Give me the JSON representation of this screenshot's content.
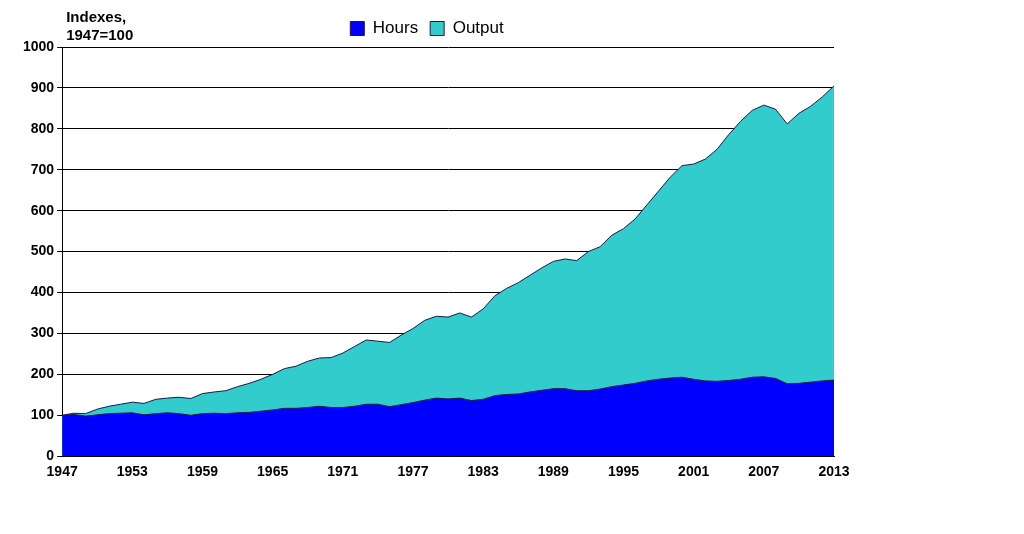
{
  "chart_data": {
    "type": "area",
    "y_label": [
      "Indexes,",
      "1947=100"
    ],
    "x": [
      1947,
      1948,
      1949,
      1950,
      1951,
      1952,
      1953,
      1954,
      1955,
      1956,
      1957,
      1958,
      1959,
      1960,
      1961,
      1962,
      1963,
      1964,
      1965,
      1966,
      1967,
      1968,
      1969,
      1970,
      1971,
      1972,
      1973,
      1974,
      1975,
      1976,
      1977,
      1978,
      1979,
      1980,
      1981,
      1982,
      1983,
      1984,
      1985,
      1986,
      1987,
      1988,
      1989,
      1990,
      1991,
      1992,
      1993,
      1994,
      1995,
      1996,
      1997,
      1998,
      1999,
      2000,
      2001,
      2002,
      2003,
      2004,
      2005,
      2006,
      2007,
      2008,
      2009,
      2010,
      2011,
      2012,
      2013
    ],
    "series": [
      {
        "name": "Output",
        "color": "#33cccc",
        "values": [
          100,
          105,
          104,
          115,
          122,
          127,
          132,
          129,
          139,
          142,
          144,
          141,
          153,
          157,
          160,
          170,
          178,
          188,
          200,
          214,
          220,
          232,
          240,
          241,
          252,
          268,
          284,
          281,
          278,
          296,
          312,
          332,
          342,
          340,
          350,
          340,
          360,
          392,
          410,
          424,
          442,
          460,
          476,
          482,
          478,
          500,
          512,
          540,
          556,
          580,
          614,
          648,
          682,
          710,
          714,
          726,
          750,
          786,
          818,
          845,
          858,
          848,
          812,
          838,
          855,
          878,
          905
        ]
      },
      {
        "name": "Hours",
        "color": "#0000ff",
        "values": [
          100,
          102,
          98,
          101,
          104,
          105,
          106,
          101,
          104,
          106,
          104,
          100,
          104,
          105,
          104,
          106,
          107,
          110,
          113,
          117,
          117,
          119,
          122,
          119,
          119,
          122,
          127,
          127,
          121,
          126,
          131,
          137,
          142,
          140,
          142,
          136,
          139,
          148,
          151,
          152,
          157,
          161,
          165,
          165,
          160,
          160,
          164,
          170,
          174,
          178,
          184,
          188,
          191,
          193,
          188,
          184,
          183,
          185,
          188,
          193,
          194,
          190,
          177,
          178,
          181,
          184,
          186
        ]
      }
    ],
    "xlim": [
      1947,
      2013
    ],
    "xticks": [
      1947,
      1953,
      1959,
      1965,
      1971,
      1977,
      1983,
      1989,
      1995,
      2001,
      2007,
      2013
    ],
    "ylim": [
      0,
      1000
    ],
    "yticks": [
      0,
      100,
      200,
      300,
      400,
      500,
      600,
      700,
      800,
      900,
      1000
    ],
    "grid": true,
    "legend": "top"
  }
}
